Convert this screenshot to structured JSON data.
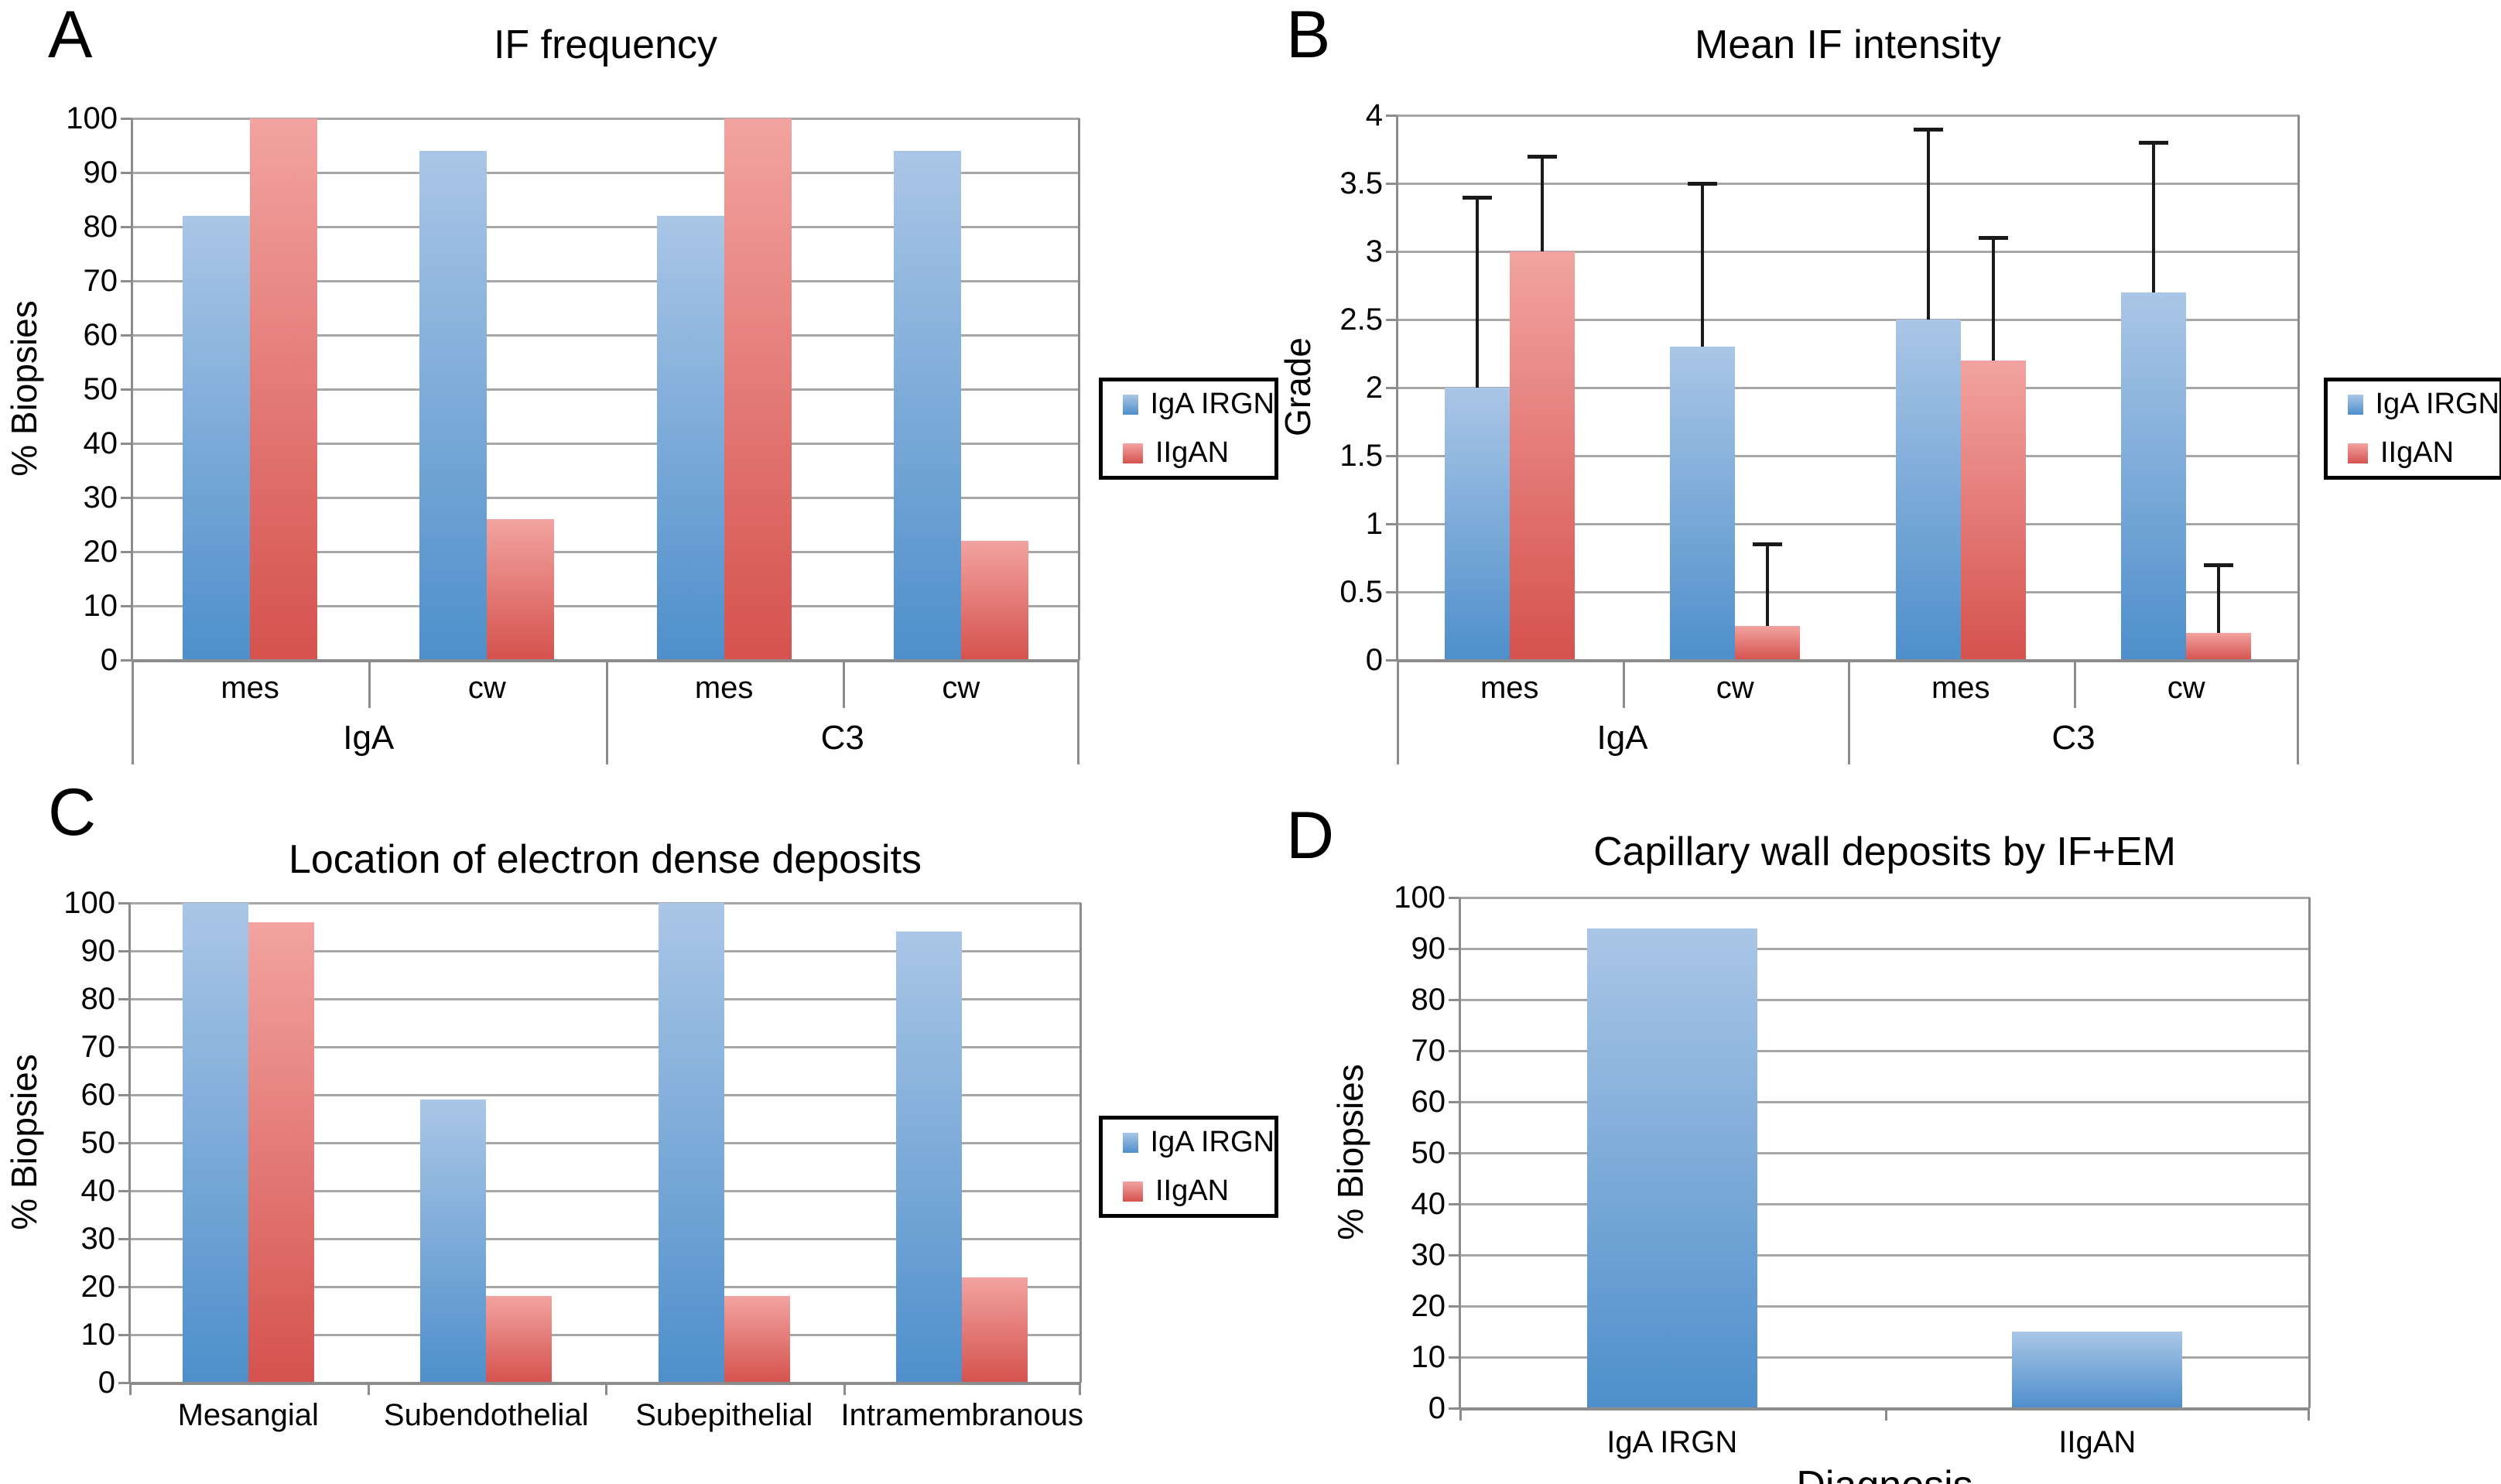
{
  "colors": {
    "background": "#FFFFFF",
    "gridline": "#A6A6A6",
    "axis": "#8C8C8C",
    "error_bar": "#1A1A1A",
    "legend_border": "#000000",
    "blue_top": "#AAC6E6",
    "blue_bottom": "#4E8FCB",
    "red_top": "#F2A3A0",
    "red_bottom": "#D5524E"
  },
  "legend_labels": [
    "IgA IRGN",
    "IIgAN"
  ],
  "chart_data": [
    {
      "panel_label": "A",
      "type": "bar",
      "title": "IF frequency",
      "ylabel": "% Biopsies",
      "xlabel": "",
      "ylim": [
        0,
        100
      ],
      "ytick_step": 10,
      "grid": true,
      "legend_position": "right",
      "categories": [
        "mes",
        "cw",
        "mes",
        "cw"
      ],
      "group_labels": [
        "IgA",
        "C3"
      ],
      "series": [
        {
          "name": "IgA IRGN",
          "color_top": "#AAC6E6",
          "color_bottom": "#4E8FCB",
          "values": [
            82,
            94,
            82,
            94
          ]
        },
        {
          "name": "IIgAN",
          "color_top": "#F2A3A0",
          "color_bottom": "#D5524E",
          "values": [
            100,
            26,
            100,
            22
          ]
        }
      ]
    },
    {
      "panel_label": "B",
      "type": "bar",
      "title": "Mean IF intensity",
      "ylabel": "Grade",
      "xlabel": "",
      "ylim": [
        0,
        4
      ],
      "ytick_step": 0.5,
      "grid": true,
      "legend_position": "right",
      "categories": [
        "mes",
        "cw",
        "mes",
        "cw"
      ],
      "group_labels": [
        "IgA",
        "C3"
      ],
      "series": [
        {
          "name": "IgA IRGN",
          "color_top": "#AAC6E6",
          "color_bottom": "#4E8FCB",
          "values": [
            2.0,
            2.3,
            2.5,
            2.7
          ],
          "errors_up": [
            1.4,
            1.2,
            1.4,
            1.1
          ]
        },
        {
          "name": "IIgAN",
          "color_top": "#F2A3A0",
          "color_bottom": "#D5524E",
          "values": [
            3.0,
            0.25,
            2.2,
            0.2
          ],
          "errors_up": [
            0.7,
            0.6,
            0.9,
            0.5
          ]
        }
      ]
    },
    {
      "panel_label": "C",
      "type": "bar",
      "title": "Location of electron dense deposits",
      "ylabel": "% Biopsies",
      "xlabel": "",
      "ylim": [
        0,
        100
      ],
      "ytick_step": 10,
      "grid": true,
      "legend_position": "right",
      "categories": [
        "Mesangial",
        "Subendothelial",
        "Subepithelial",
        "Intramembranous"
      ],
      "group_labels": [],
      "series": [
        {
          "name": "IgA IRGN",
          "color_top": "#AAC6E6",
          "color_bottom": "#4E8FCB",
          "values": [
            100,
            59,
            100,
            94
          ]
        },
        {
          "name": "IIgAN",
          "color_top": "#F2A3A0",
          "color_bottom": "#D5524E",
          "values": [
            96,
            18,
            18,
            22
          ]
        }
      ]
    },
    {
      "panel_label": "D",
      "type": "bar",
      "title": "Capillary wall deposits by IF+EM",
      "ylabel": "% Biopsies",
      "xlabel": "Diagnosis",
      "ylim": [
        0,
        100
      ],
      "ytick_step": 10,
      "grid": true,
      "legend_position": "none",
      "categories": [
        "IgA IRGN",
        "IIgAN"
      ],
      "group_labels": [],
      "series": [
        {
          "name": "IgA IRGN",
          "color_top": "#AAC6E6",
          "color_bottom": "#4E8FCB",
          "values": [
            94,
            15
          ]
        }
      ]
    }
  ]
}
